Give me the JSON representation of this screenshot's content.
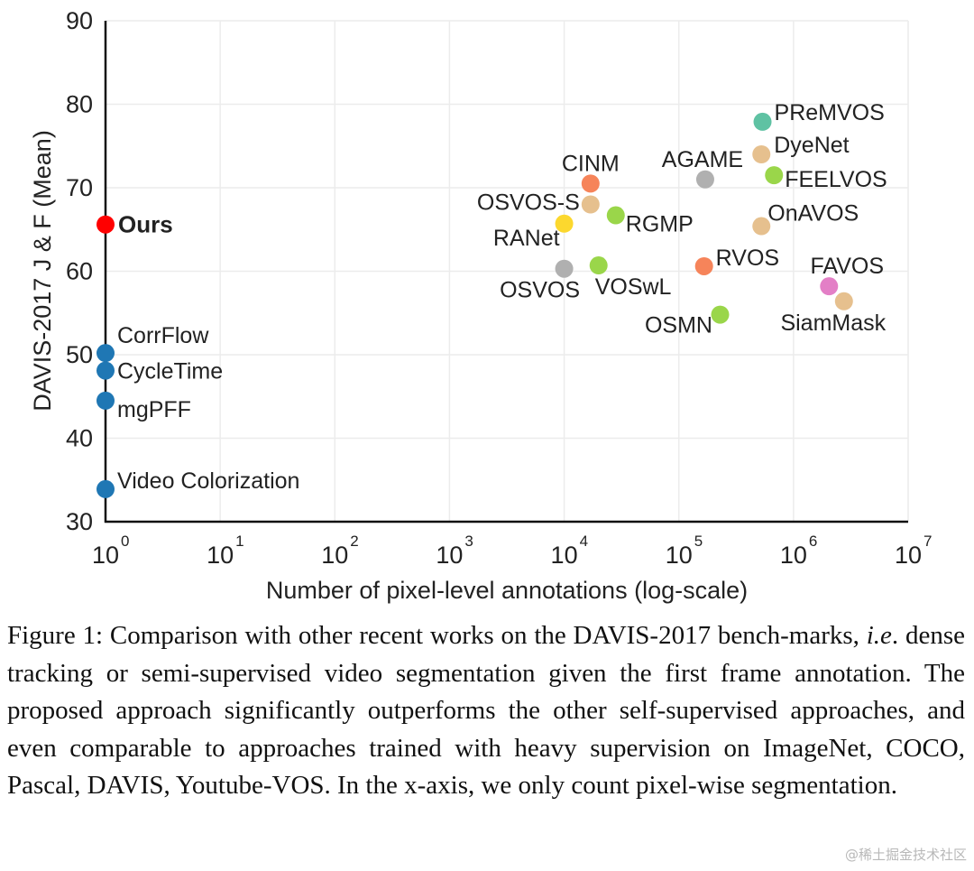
{
  "chart_data": {
    "type": "scatter",
    "title": "",
    "xlabel": "Number of pixel-level annotations (log-scale)",
    "ylabel": "DAVIS-2017 J & F (Mean)",
    "x_scale": "log10",
    "xlim_exponent": [
      0,
      7
    ],
    "ylim": [
      30,
      90
    ],
    "x_ticks": [
      {
        "base": "10",
        "exp": "0"
      },
      {
        "base": "10",
        "exp": "1"
      },
      {
        "base": "10",
        "exp": "2"
      },
      {
        "base": "10",
        "exp": "3"
      },
      {
        "base": "10",
        "exp": "4"
      },
      {
        "base": "10",
        "exp": "5"
      },
      {
        "base": "10",
        "exp": "6"
      },
      {
        "base": "10",
        "exp": "7"
      }
    ],
    "y_ticks": [
      "30",
      "40",
      "50",
      "60",
      "70",
      "80",
      "90"
    ],
    "grid": true,
    "points": [
      {
        "name": "Ours",
        "log10_x": 0,
        "y": 65.6,
        "color": "#ff0000",
        "bold": true,
        "label_pos": "right"
      },
      {
        "name": "CorrFlow",
        "log10_x": 0,
        "y": 50.2,
        "color": "#1f77b4",
        "label_pos": "upper-right"
      },
      {
        "name": "CycleTime",
        "log10_x": 0,
        "y": 48.1,
        "color": "#1f77b4",
        "label_pos": "right"
      },
      {
        "name": "mgPFF",
        "log10_x": 0,
        "y": 44.5,
        "color": "#1f77b4",
        "label_pos": "lower-right"
      },
      {
        "name": "Video Colorization",
        "log10_x": 0,
        "y": 33.9,
        "color": "#1f77b4",
        "label_pos": "upper-right"
      },
      {
        "name": "PReMVOS",
        "log10_x": 5.73,
        "y": 77.9,
        "color": "#5fc2a3",
        "label_pos": "upper-right"
      },
      {
        "name": "DyeNet",
        "log10_x": 5.72,
        "y": 74.0,
        "color": "#e6c08e",
        "label_pos": "upper-right"
      },
      {
        "name": "FEELVOS",
        "log10_x": 5.83,
        "y": 71.5,
        "color": "#9ad64a",
        "label_pos": "lower-right"
      },
      {
        "name": "AGAME",
        "log10_x": 5.23,
        "y": 71.0,
        "color": "#b0b0b0",
        "label_pos": "above"
      },
      {
        "name": "CINM",
        "log10_x": 4.23,
        "y": 70.5,
        "color": "#f6845a",
        "label_pos": "above"
      },
      {
        "name": "OSVOS-S",
        "log10_x": 4.23,
        "y": 68.0,
        "color": "#e6c08e",
        "label_pos": "left"
      },
      {
        "name": "RGMP",
        "log10_x": 4.45,
        "y": 66.7,
        "color": "#9ad64a",
        "label_pos": "lower-right"
      },
      {
        "name": "RANet",
        "log10_x": 4.0,
        "y": 65.7,
        "color": "#fcd82e",
        "label_pos": "lower-left"
      },
      {
        "name": "OnAVOS",
        "log10_x": 5.72,
        "y": 65.4,
        "color": "#e6c08e",
        "label_pos": "upper-right"
      },
      {
        "name": "OSVOS",
        "log10_x": 4.0,
        "y": 60.3,
        "color": "#b0b0b0",
        "label_pos": "below"
      },
      {
        "name": "VOSwL",
        "log10_x": 4.3,
        "y": 60.7,
        "color": "#9ad64a",
        "label_pos": "lower-right"
      },
      {
        "name": "RVOS",
        "log10_x": 5.22,
        "y": 60.6,
        "color": "#f6845a",
        "label_pos": "upper-right"
      },
      {
        "name": "FAVOS",
        "log10_x": 6.31,
        "y": 58.2,
        "color": "#e37fc6",
        "label_pos": "above"
      },
      {
        "name": "SiamMask",
        "log10_x": 6.44,
        "y": 56.4,
        "color": "#e6c08e",
        "label_pos": "below"
      },
      {
        "name": "OSMN",
        "log10_x": 5.36,
        "y": 54.8,
        "color": "#9ad64a",
        "label_pos": "lower-left"
      }
    ]
  },
  "caption": {
    "prefix": "Figure 1: Comparison with other recent works on the DAVIS-2017 bench-marks, ",
    "italic": "i.e",
    "suffix": ". dense tracking or semi-supervised video segmentation given the first frame annotation.  The proposed approach significantly outperforms the other self-supervised approaches, and even comparable to approaches trained with heavy supervision on ImageNet, COCO, Pascal, DAVIS, Youtube-VOS. In the x-axis, we only count pixel-wise segmentation."
  },
  "watermark": "@稀土掘金技术社区"
}
